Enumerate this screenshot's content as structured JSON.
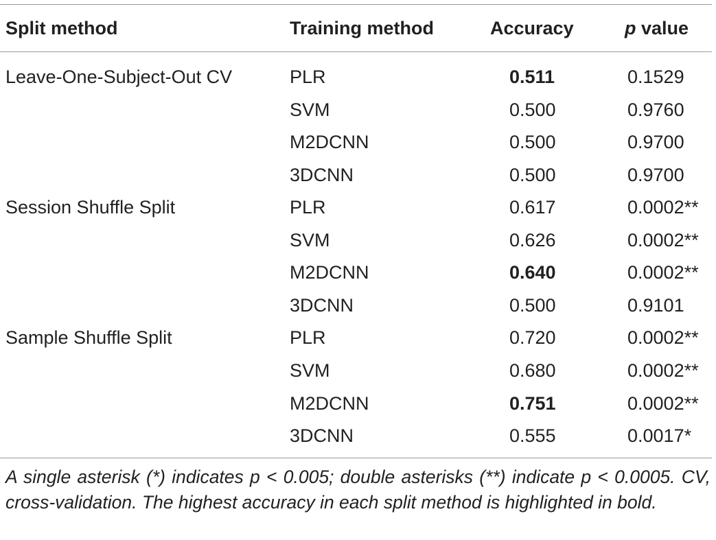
{
  "table": {
    "headers": {
      "split_method": "Split method",
      "training_method": "Training method",
      "accuracy": "Accuracy",
      "p_italic": "p",
      "p_rest": " value"
    },
    "rows": [
      {
        "split": "Leave-One-Subject-Out CV",
        "training": "PLR",
        "accuracy": "0.511",
        "accuracy_bold": true,
        "p": "0.1529"
      },
      {
        "split": "",
        "training": "SVM",
        "accuracy": "0.500",
        "accuracy_bold": false,
        "p": "0.9760"
      },
      {
        "split": "",
        "training": "M2DCNN",
        "accuracy": "0.500",
        "accuracy_bold": false,
        "p": "0.9700"
      },
      {
        "split": "",
        "training": "3DCNN",
        "accuracy": "0.500",
        "accuracy_bold": false,
        "p": "0.9700"
      },
      {
        "split": "Session Shuffle Split",
        "training": "PLR",
        "accuracy": "0.617",
        "accuracy_bold": false,
        "p": "0.0002**"
      },
      {
        "split": "",
        "training": "SVM",
        "accuracy": "0.626",
        "accuracy_bold": false,
        "p": "0.0002**"
      },
      {
        "split": "",
        "training": "M2DCNN",
        "accuracy": "0.640",
        "accuracy_bold": true,
        "p": "0.0002**"
      },
      {
        "split": "",
        "training": "3DCNN",
        "accuracy": "0.500",
        "accuracy_bold": false,
        "p": "0.9101"
      },
      {
        "split": "Sample Shuffle Split",
        "training": "PLR",
        "accuracy": "0.720",
        "accuracy_bold": false,
        "p": "0.0002**"
      },
      {
        "split": "",
        "training": "SVM",
        "accuracy": "0.680",
        "accuracy_bold": false,
        "p": "0.0002**"
      },
      {
        "split": "",
        "training": "M2DCNN",
        "accuracy": "0.751",
        "accuracy_bold": true,
        "p": "0.0002**"
      },
      {
        "split": "",
        "training": "3DCNN",
        "accuracy": "0.555",
        "accuracy_bold": false,
        "p": "0.0017*"
      }
    ]
  },
  "footnote": "A single asterisk (*) indicates p < 0.005; double asterisks (**) indicate p < 0.0005. CV, cross-validation. The highest accuracy in each split method is highlighted in bold."
}
